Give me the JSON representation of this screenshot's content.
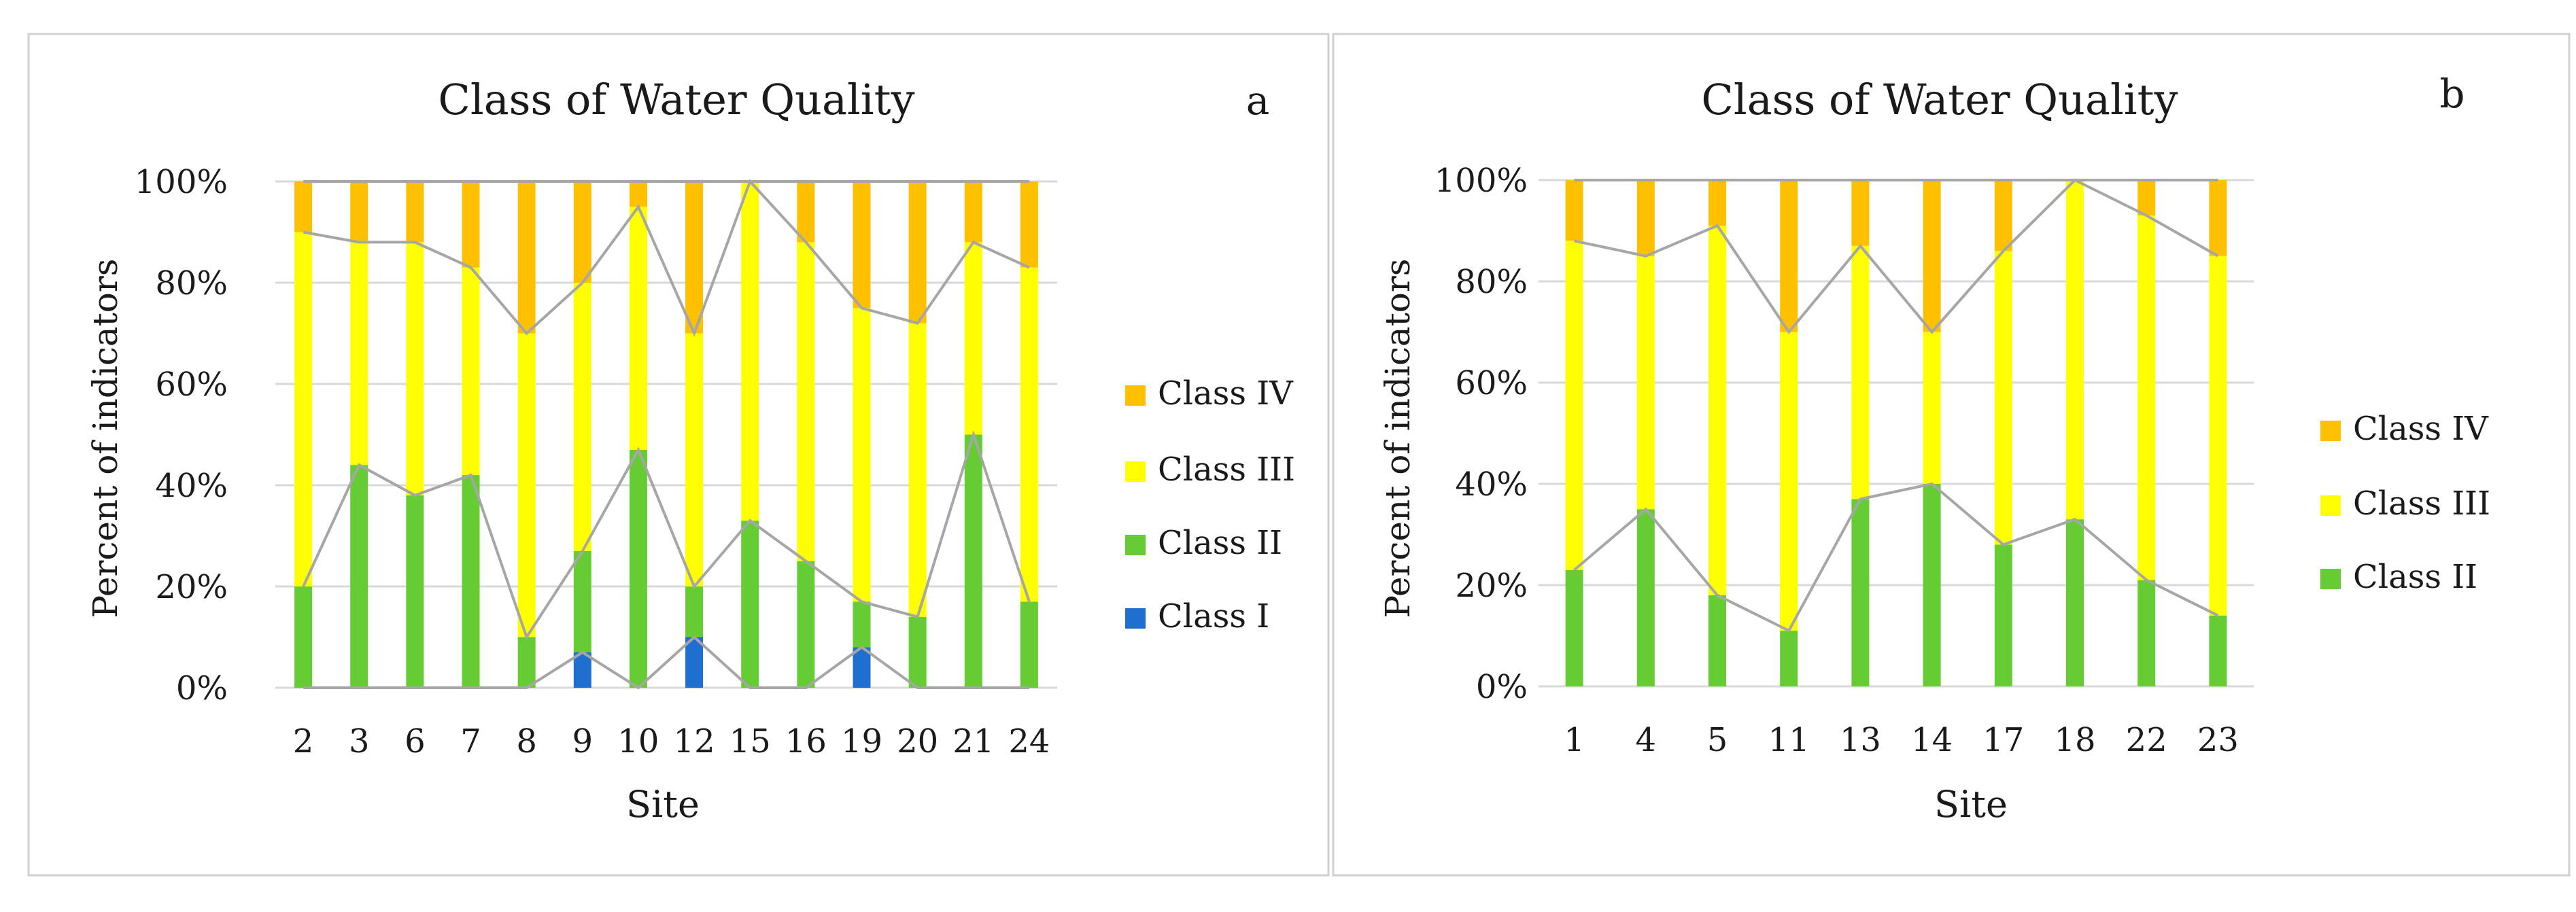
{
  "colors": {
    "class_i": "#1f6fd1",
    "class_ii": "#66cc33",
    "class_iii": "#ffff00",
    "class_iv": "#ffc000",
    "grid": "#d9d9d9",
    "series_lines": "#a6a6a6",
    "border": "#d0d0d0"
  },
  "chart_data": [
    {
      "type": "bar",
      "stacked": true,
      "percent": true,
      "title": "Class of Water Quality",
      "panel_label": "a",
      "xlabel": "Site",
      "ylabel": "Percent of indicators",
      "ylim": [
        0,
        100
      ],
      "yticks": [
        "0%",
        "20%",
        "40%",
        "60%",
        "80%",
        "100%"
      ],
      "categories": [
        "2",
        "3",
        "6",
        "7",
        "8",
        "9",
        "10",
        "12",
        "15",
        "16",
        "19",
        "20",
        "21",
        "24"
      ],
      "series": [
        {
          "name": "Class I",
          "key": "class_i",
          "values": [
            0,
            0,
            0,
            0,
            0,
            7,
            0,
            10,
            0,
            0,
            8,
            0,
            0,
            0
          ]
        },
        {
          "name": "Class II",
          "key": "class_ii",
          "values": [
            20,
            44,
            38,
            42,
            10,
            20,
            47,
            10,
            33,
            25,
            9,
            14,
            50,
            17
          ]
        },
        {
          "name": "Class III",
          "key": "class_iii",
          "values": [
            70,
            44,
            50,
            41,
            60,
            53,
            48,
            50,
            67,
            63,
            58,
            58,
            38,
            66
          ]
        },
        {
          "name": "Class IV",
          "key": "class_iv",
          "values": [
            10,
            12,
            12,
            17,
            30,
            20,
            5,
            30,
            0,
            12,
            25,
            28,
            12,
            17
          ]
        }
      ],
      "legend": [
        "Class IV",
        "Class III",
        "Class II",
        "Class I"
      ],
      "legend_position": "right",
      "series_lines": true
    },
    {
      "type": "bar",
      "stacked": true,
      "percent": true,
      "title": "Class of Water Quality",
      "panel_label": "b",
      "xlabel": "Site",
      "ylabel": "Percent of indicators",
      "ylim": [
        0,
        100
      ],
      "yticks": [
        "0%",
        "20%",
        "40%",
        "60%",
        "80%",
        "100%"
      ],
      "categories": [
        "1",
        "4",
        "5",
        "11",
        "13",
        "14",
        "17",
        "18",
        "22",
        "23"
      ],
      "series": [
        {
          "name": "Class II",
          "key": "class_ii",
          "values": [
            23,
            35,
            18,
            11,
            37,
            40,
            28,
            33,
            21,
            14
          ]
        },
        {
          "name": "Class III",
          "key": "class_iii",
          "values": [
            65,
            50,
            73,
            59,
            50,
            30,
            58,
            67,
            72,
            71
          ]
        },
        {
          "name": "Class IV",
          "key": "class_iv",
          "values": [
            12,
            15,
            9,
            30,
            13,
            30,
            14,
            0,
            7,
            15
          ]
        }
      ],
      "legend": [
        "Class IV",
        "Class III",
        "Class II"
      ],
      "legend_position": "right",
      "series_lines": true
    }
  ]
}
